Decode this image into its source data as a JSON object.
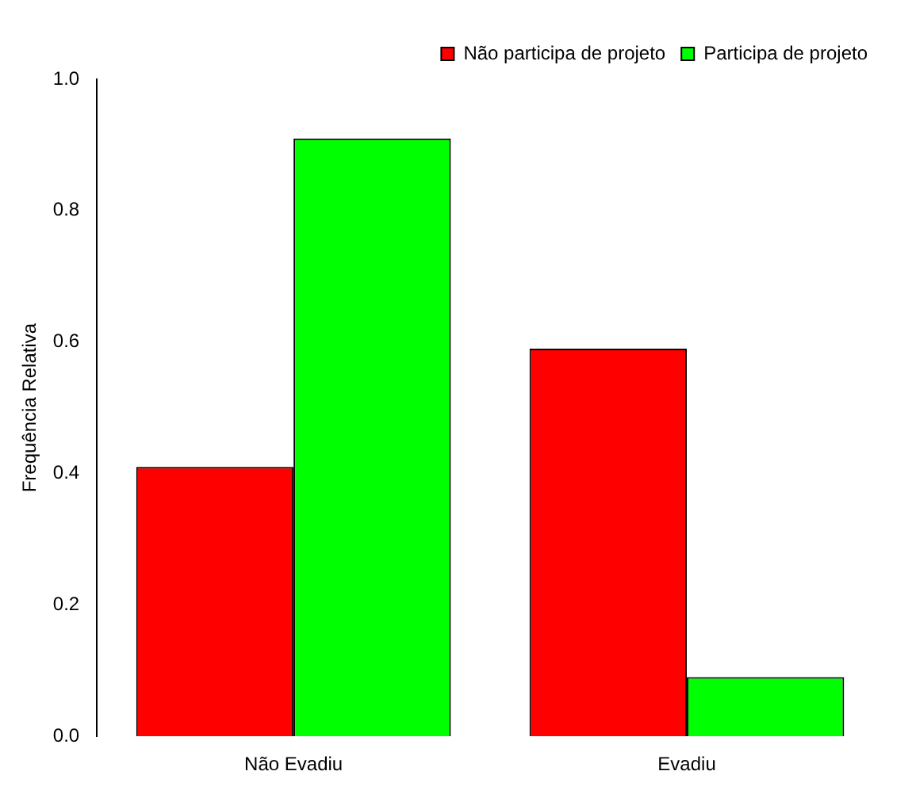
{
  "chart_data": {
    "type": "bar",
    "ylabel": "Frequência Relativa",
    "categories": [
      "Não Evadiu",
      "Evadiu"
    ],
    "series": [
      {
        "name": "Não participa de projeto",
        "color": "#ff0000",
        "values": [
          0.41,
          0.59
        ]
      },
      {
        "name": "Participa de projeto",
        "color": "#00ff00",
        "values": [
          0.91,
          0.09
        ]
      }
    ],
    "ylim": [
      0,
      1
    ],
    "yticks": [
      {
        "value": 0,
        "label": "0.0"
      },
      {
        "value": 0.2,
        "label": "0.2"
      },
      {
        "value": 0.4,
        "label": "0.4"
      },
      {
        "value": 0.6,
        "label": "0.6"
      },
      {
        "value": 0.8,
        "label": "0.8"
      },
      {
        "value": 1,
        "label": "1.0"
      }
    ],
    "grid": false,
    "legend": "top right"
  }
}
